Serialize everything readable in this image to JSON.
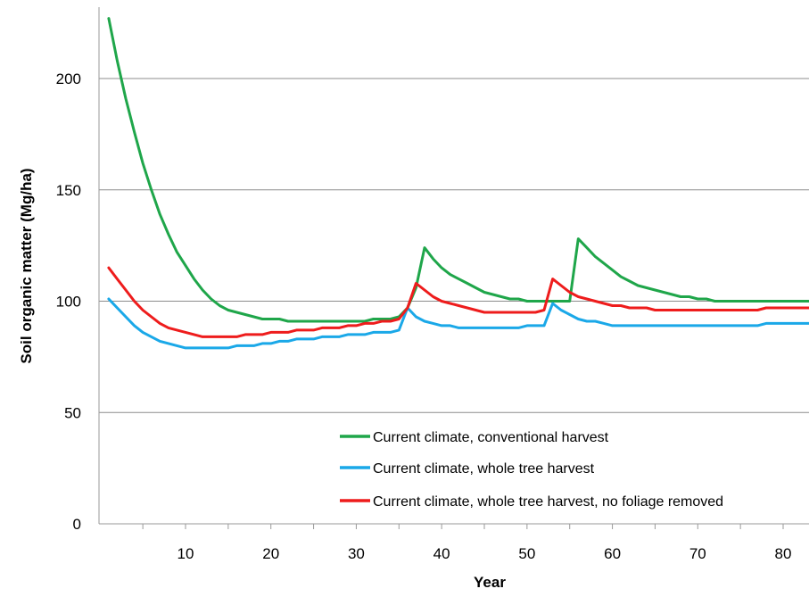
{
  "chart_data": {
    "type": "line",
    "title": "",
    "xlabel": "Year",
    "ylabel": "Soil organic matter (Mg/ha)",
    "xlim": [
      0,
      83
    ],
    "ylim": [
      0,
      230
    ],
    "xticks": [
      10,
      20,
      30,
      40,
      50,
      60,
      70,
      80
    ],
    "yticks": [
      0,
      50,
      100,
      150,
      200
    ],
    "grid": "horizontal",
    "legend_position": "bottom-right",
    "series": [
      {
        "name": "Current climate, conventional harvest",
        "color": "#1fa64a",
        "x": [
          1,
          2,
          3,
          4,
          5,
          6,
          7,
          8,
          9,
          10,
          11,
          12,
          13,
          14,
          15,
          16,
          17,
          18,
          19,
          20,
          21,
          22,
          23,
          24,
          25,
          26,
          27,
          28,
          29,
          30,
          31,
          32,
          33,
          34,
          35,
          36,
          37,
          38,
          39,
          40,
          41,
          42,
          43,
          44,
          45,
          46,
          47,
          48,
          49,
          50,
          51,
          52,
          53,
          54,
          55,
          56,
          57,
          58,
          59,
          60,
          61,
          62,
          63,
          64,
          65,
          66,
          67,
          68,
          69,
          70,
          71,
          72,
          73,
          74,
          75,
          76,
          77,
          78,
          79,
          80,
          81,
          82,
          83
        ],
        "y": [
          227,
          208,
          191,
          176,
          162,
          150,
          139,
          130,
          122,
          116,
          110,
          105,
          101,
          98,
          96,
          95,
          94,
          93,
          92,
          92,
          92,
          91,
          91,
          91,
          91,
          91,
          91,
          91,
          91,
          91,
          91,
          92,
          92,
          92,
          93,
          97,
          106,
          124,
          119,
          115,
          112,
          110,
          108,
          106,
          104,
          103,
          102,
          101,
          101,
          100,
          100,
          100,
          100,
          100,
          100,
          128,
          124,
          120,
          117,
          114,
          111,
          109,
          107,
          106,
          105,
          104,
          103,
          102,
          102,
          101,
          101,
          100,
          100,
          100,
          100,
          100,
          100,
          100,
          100,
          100,
          100,
          100,
          100
        ]
      },
      {
        "name": "Current climate, whole tree harvest",
        "color": "#1aa8e8",
        "x": [
          1,
          2,
          3,
          4,
          5,
          6,
          7,
          8,
          9,
          10,
          11,
          12,
          13,
          14,
          15,
          16,
          17,
          18,
          19,
          20,
          21,
          22,
          23,
          24,
          25,
          26,
          27,
          28,
          29,
          30,
          31,
          32,
          33,
          34,
          35,
          36,
          37,
          38,
          39,
          40,
          41,
          42,
          43,
          44,
          45,
          46,
          47,
          48,
          49,
          50,
          51,
          52,
          53,
          54,
          55,
          56,
          57,
          58,
          59,
          60,
          61,
          62,
          63,
          64,
          65,
          66,
          67,
          68,
          69,
          70,
          71,
          72,
          73,
          74,
          75,
          76,
          77,
          78,
          79,
          80,
          81,
          82,
          83
        ],
        "y": [
          101,
          97,
          93,
          89,
          86,
          84,
          82,
          81,
          80,
          79,
          79,
          79,
          79,
          79,
          79,
          80,
          80,
          80,
          81,
          81,
          82,
          82,
          83,
          83,
          83,
          84,
          84,
          84,
          85,
          85,
          85,
          86,
          86,
          86,
          87,
          97,
          93,
          91,
          90,
          89,
          89,
          88,
          88,
          88,
          88,
          88,
          88,
          88,
          88,
          89,
          89,
          89,
          99,
          96,
          94,
          92,
          91,
          91,
          90,
          89,
          89,
          89,
          89,
          89,
          89,
          89,
          89,
          89,
          89,
          89,
          89,
          89,
          89,
          89,
          89,
          89,
          89,
          90,
          90,
          90,
          90,
          90,
          90
        ]
      },
      {
        "name": "Current climate, whole tree harvest, no foliage removed",
        "color": "#ee1c1c",
        "x": [
          1,
          2,
          3,
          4,
          5,
          6,
          7,
          8,
          9,
          10,
          11,
          12,
          13,
          14,
          15,
          16,
          17,
          18,
          19,
          20,
          21,
          22,
          23,
          24,
          25,
          26,
          27,
          28,
          29,
          30,
          31,
          32,
          33,
          34,
          35,
          36,
          37,
          38,
          39,
          40,
          41,
          42,
          43,
          44,
          45,
          46,
          47,
          48,
          49,
          50,
          51,
          52,
          53,
          54,
          55,
          56,
          57,
          58,
          59,
          60,
          61,
          62,
          63,
          64,
          65,
          66,
          67,
          68,
          69,
          70,
          71,
          72,
          73,
          74,
          75,
          76,
          77,
          78,
          79,
          80,
          81,
          82,
          83
        ],
        "y": [
          115,
          110,
          105,
          100,
          96,
          93,
          90,
          88,
          87,
          86,
          85,
          84,
          84,
          84,
          84,
          84,
          85,
          85,
          85,
          86,
          86,
          86,
          87,
          87,
          87,
          88,
          88,
          88,
          89,
          89,
          90,
          90,
          91,
          91,
          92,
          97,
          108,
          105,
          102,
          100,
          99,
          98,
          97,
          96,
          95,
          95,
          95,
          95,
          95,
          95,
          95,
          96,
          110,
          107,
          104,
          102,
          101,
          100,
          99,
          98,
          98,
          97,
          97,
          97,
          96,
          96,
          96,
          96,
          96,
          96,
          96,
          96,
          96,
          96,
          96,
          96,
          96,
          97,
          97,
          97,
          97,
          97,
          97
        ]
      }
    ]
  }
}
